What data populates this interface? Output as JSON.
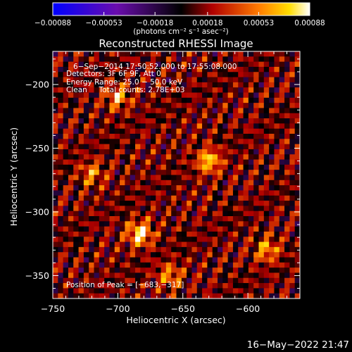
{
  "chart_data": {
    "type": "heatmap",
    "title": "Reconstructed RHESSI Image",
    "xlabel": "Heliocentric X (arcsec)",
    "ylabel": "Heliocentric Y (arcsec)",
    "xlim": [
      -750,
      -560
    ],
    "ylim": [
      -368,
      -174
    ],
    "x_ticks": [
      "−750",
      "−700",
      "−650",
      "−600"
    ],
    "x_tick_values": [
      -750,
      -700,
      -650,
      -600
    ],
    "y_ticks": [
      "−200",
      "−250",
      "−300",
      "−350"
    ],
    "y_tick_values": [
      -200,
      -250,
      -300,
      -350
    ],
    "colorbar": {
      "tick_labels": [
        "−0.00088",
        "−0.00053",
        "−0.00018",
        "0.00018",
        "0.00053",
        "0.00088"
      ],
      "tick_values": [
        -0.00088,
        -0.00053,
        -0.00018,
        0.00018,
        0.00053,
        0.00088
      ],
      "range": [
        -0.00088,
        0.00088
      ],
      "units_label": "(photons cm⁻² s⁻¹ asec⁻²)"
    },
    "annotations": [
      "6−Sep−2014 17:50:52.000 to 17:55:08.000",
      "Detectors: 3F 6F 9F, Att 0",
      "Energy Range: 25.0 − 50.0 keV",
      "Clean     Total counts: 2.78E+03"
    ],
    "peak_label": "Position of Peak = [−683,−317]",
    "peak": {
      "x": -683,
      "y": -317
    },
    "grid": 48,
    "grid_rows": 48,
    "bright_sources": [
      {
        "x": -683,
        "y": -317,
        "value": 0.00088
      },
      {
        "x": -630,
        "y": -260,
        "value": 0.00075
      },
      {
        "x": -700,
        "y": -210,
        "value": 0.0006
      },
      {
        "x": -585,
        "y": -330,
        "value": 0.00058
      },
      {
        "x": -660,
        "y": -350,
        "value": 0.00052
      },
      {
        "x": -720,
        "y": -270,
        "value": 0.0005
      }
    ]
  },
  "footer": {
    "date": "16−May−2022 21:47"
  },
  "colors": {
    "background": "#000000",
    "axes": "#ffffff",
    "text": "#ffffff"
  }
}
